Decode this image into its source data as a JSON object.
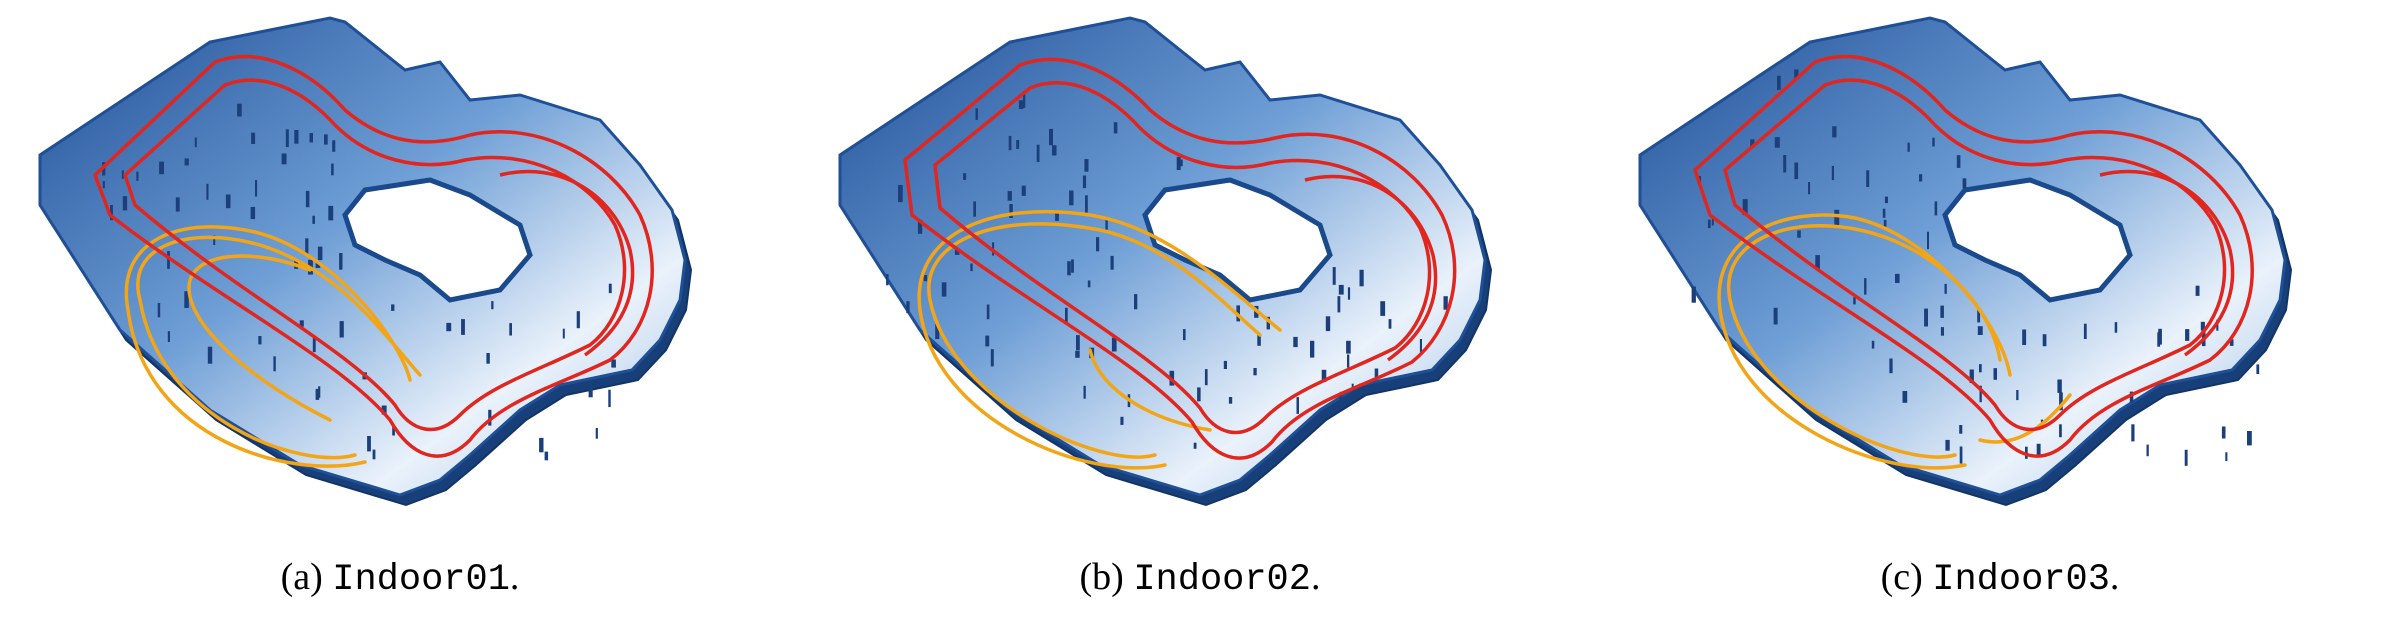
{
  "figure": {
    "panels": [
      {
        "caption_prefix": "(a)",
        "sequence": "Indoor01",
        "caption_suffix": "."
      },
      {
        "caption_prefix": "(b)",
        "sequence": "Indoor02",
        "caption_suffix": "."
      },
      {
        "caption_prefix": "(c)",
        "sequence": "Indoor03",
        "caption_suffix": "."
      }
    ],
    "colors": {
      "floor_dark": "#1f4f96",
      "floor_light": "#eaf2fb",
      "trajectory_red": "#e0261f",
      "trajectory_orange": "#f2a516"
    }
  }
}
